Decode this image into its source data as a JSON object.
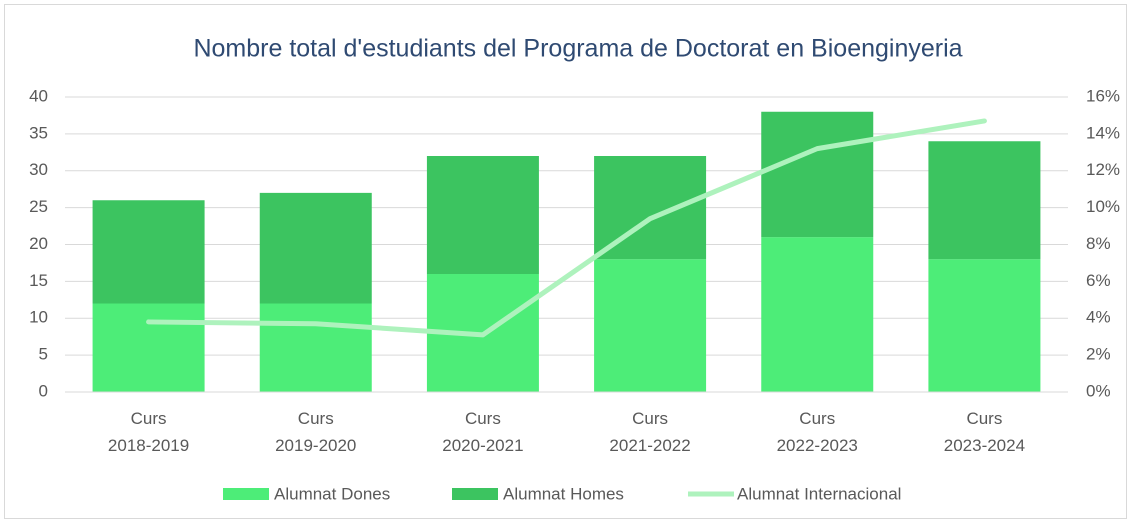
{
  "chart_data": {
    "type": "bar",
    "title": "Nombre total d'estudiants del Programa de Doctorat en Bioenginyeria",
    "categories": [
      "Curs 2018-2019",
      "Curs 2019-2020",
      "Curs 2020-2021",
      "Curs 2021-2022",
      "Curs 2022-2023",
      "Curs 2023-2024"
    ],
    "series": [
      {
        "name": "Alumnat Dones",
        "color": "#4ded78",
        "values": [
          12,
          12,
          16,
          18,
          21,
          18
        ]
      },
      {
        "name": "Alumnat Homes",
        "color": "#3cc460",
        "values": [
          14,
          15,
          16,
          14,
          17,
          16
        ]
      },
      {
        "name": "Alumnat Internacional",
        "color": "#aef2bd",
        "type": "line",
        "axis": "y2",
        "values": [
          3.8,
          3.7,
          3.1,
          9.4,
          13.2,
          14.7
        ]
      }
    ],
    "stacked": true,
    "ylim": [
      0,
      40
    ],
    "yticks": [
      0,
      5,
      10,
      15,
      20,
      25,
      30,
      35,
      40
    ],
    "y2lim": [
      0,
      16
    ],
    "y2ticks": [
      {
        "value": 0,
        "label": "0%"
      },
      {
        "value": 2,
        "label": "2%"
      },
      {
        "value": 4,
        "label": "4%"
      },
      {
        "value": 6,
        "label": "6%"
      },
      {
        "value": 8,
        "label": "8%"
      },
      {
        "value": 10,
        "label": "10%"
      },
      {
        "value": 12,
        "label": "12%"
      },
      {
        "value": 14,
        "label": "14%"
      },
      {
        "value": 16,
        "label": "16%"
      }
    ],
    "grid": true,
    "legend": "bottom"
  }
}
